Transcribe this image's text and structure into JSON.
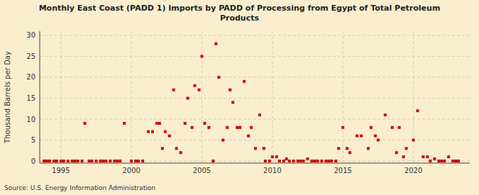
{
  "chart_data": {
    "type": "scatter",
    "title": "Monthly East Coast (PADD 1) Imports by PADD of Processing from Egypt of Total Petroleum\nProducts",
    "ylabel": "Thousand Barrels per Day",
    "source": "Source: U.S. Energy Information Administration",
    "background_color": "#faeecf",
    "color": "#cc0000",
    "marker": "square",
    "grid": true,
    "xlim": [
      1993.5,
      2024.0
    ],
    "ylim": [
      -0.5,
      31
    ],
    "xticks": [
      1995,
      2000,
      2005,
      2010,
      2015,
      2020
    ],
    "yticks": [
      0,
      5,
      10,
      15,
      20,
      25,
      30
    ],
    "x": [
      1996.7,
      1999.5,
      2001.2,
      2001.5,
      2001.8,
      2002.0,
      2002.2,
      2002.4,
      2002.7,
      2003.0,
      2003.2,
      2003.5,
      2003.8,
      2004.0,
      2004.3,
      2004.5,
      2004.8,
      2005.0,
      2005.2,
      2005.5,
      2006.0,
      2006.2,
      2006.5,
      2006.8,
      2007.0,
      2007.2,
      2007.5,
      2007.7,
      2008.0,
      2008.3,
      2008.5,
      2008.8,
      2009.1,
      2009.4,
      2010.0,
      2010.3,
      2011.0,
      2012.5,
      2014.7,
      2015.0,
      2015.3,
      2015.5,
      2016.0,
      2016.3,
      2016.8,
      2017.0,
      2017.3,
      2017.5,
      2018.0,
      2018.5,
      2018.8,
      2019.0,
      2019.3,
      2019.5,
      2020.0,
      2020.3,
      2020.7,
      2021.0,
      2021.5,
      2022.5,
      1993.8,
      1994.0,
      1994.2,
      1994.5,
      1994.7,
      1995.0,
      1995.2,
      1995.5,
      1995.8,
      1996.0,
      1996.2,
      1996.5,
      1997.0,
      1997.2,
      1997.5,
      1997.8,
      1998.0,
      1998.2,
      1998.5,
      1998.8,
      1999.0,
      1999.2,
      2000.0,
      2000.3,
      2000.5,
      2000.8,
      2005.8,
      2009.5,
      2009.8,
      2010.5,
      2010.8,
      2011.2,
      2011.5,
      2011.8,
      2012.0,
      2012.2,
      2012.8,
      2013.0,
      2013.2,
      2013.5,
      2013.8,
      2014.0,
      2014.2,
      2014.5,
      2021.2,
      2021.8,
      2022.0,
      2022.2,
      2022.8,
      2023.0,
      2023.2
    ],
    "values": [
      9,
      9,
      7,
      7,
      9,
      9,
      3,
      7,
      6,
      17,
      3,
      2,
      9,
      15,
      8,
      18,
      17,
      25,
      9,
      8,
      28,
      20,
      5,
      8,
      17,
      14,
      8,
      8,
      19,
      6,
      8,
      3,
      11,
      3,
      1,
      1,
      0.5,
      0.5,
      3,
      8,
      3,
      2,
      6,
      6,
      3,
      8,
      6,
      5,
      11,
      8,
      2,
      8,
      1,
      3,
      5,
      12,
      1,
      1,
      0.5,
      1,
      0,
      0,
      0,
      0,
      0,
      0,
      0,
      0,
      0,
      0,
      0,
      0,
      0,
      0,
      0,
      0,
      0,
      0,
      0,
      0,
      0,
      0,
      0,
      0,
      0,
      0,
      0,
      0,
      0,
      0,
      0,
      0,
      0,
      0,
      0,
      0,
      0,
      0,
      0,
      0,
      0,
      0,
      0,
      0,
      0,
      0,
      0,
      0,
      0,
      0,
      0
    ]
  }
}
